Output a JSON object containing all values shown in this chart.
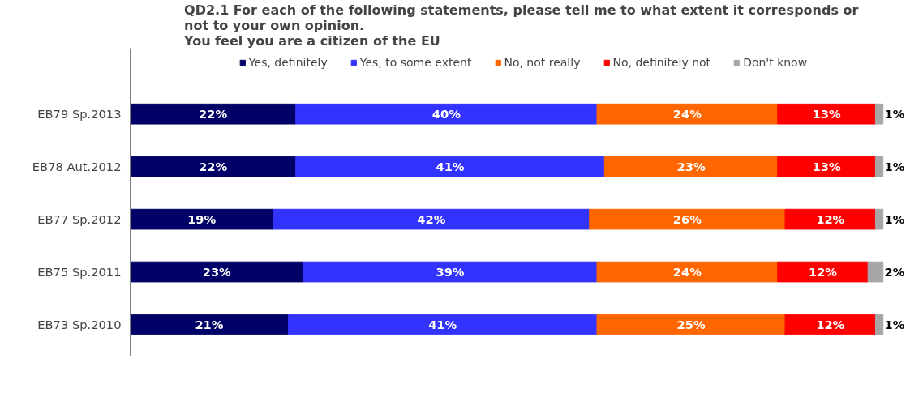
{
  "chart_data": {
    "type": "bar",
    "orientation": "horizontal",
    "stacked": true,
    "title": "QD2.1 For each of the following  statements, please tell me to what extent it corresponds or\nnot to your own opinion.\nYou feel you are a citizen of the EU",
    "categories": [
      "EB79 Sp.2013",
      "EB78 Aut.2012",
      "EB77 Sp.2012",
      "EB75 Sp.2011",
      "EB73 Sp.2010"
    ],
    "xlim": [
      0,
      100
    ],
    "tick_labels": "y",
    "grid": false,
    "legend": "top",
    "series": [
      {
        "name": "Yes, definitely",
        "color": "#000066",
        "values": [
          22,
          22,
          19,
          23,
          21
        ],
        "value_labels": [
          "22%",
          "22%",
          "19%",
          "23%",
          "21%"
        ]
      },
      {
        "name": "Yes, to some extent",
        "color": "#3333ff",
        "values": [
          40,
          41,
          42,
          39,
          41
        ],
        "value_labels": [
          "40%",
          "41%",
          "42%",
          "39%",
          "41%"
        ]
      },
      {
        "name": "No, not really",
        "color": "#ff6600",
        "values": [
          24,
          23,
          26,
          24,
          25
        ],
        "value_labels": [
          "24%",
          "23%",
          "26%",
          "24%",
          "25%"
        ]
      },
      {
        "name": "No, definitely not",
        "color": "#ff0000",
        "values": [
          13,
          13,
          12,
          12,
          12
        ],
        "value_labels": [
          "13%",
          "13%",
          "12%",
          "12%",
          "12%"
        ]
      },
      {
        "name": "Don't know",
        "color": "#a6a6a6",
        "values": [
          1,
          1,
          1,
          2,
          1
        ],
        "value_labels": [
          "1%",
          "1%",
          "1%",
          "2%",
          "1%"
        ]
      }
    ]
  }
}
